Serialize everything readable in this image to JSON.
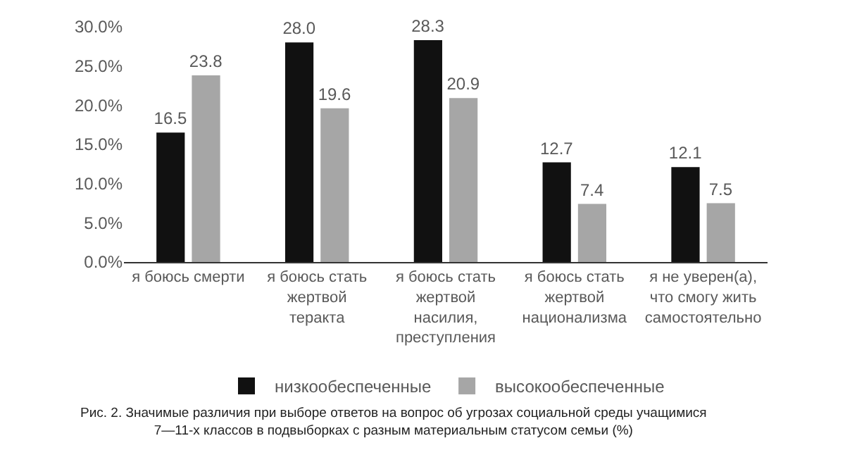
{
  "chart_data": {
    "type": "bar",
    "categories": [
      "я боюсь смерти",
      "я боюсь стать\nжертвой\nтеракта",
      "я боюсь стать\nжертвой\nнасилия,\nпреступления",
      "я боюсь стать\nжертвой\nнационализма",
      "я не уверен(а),\nчто смогу жить\nсамостоятельно"
    ],
    "series": [
      {
        "name": "низкообеспеченные",
        "color": "#111111",
        "values": [
          16.5,
          28.0,
          28.3,
          12.7,
          12.1
        ],
        "value_labels": [
          "16.5",
          "28.0",
          "28.3",
          "12.7",
          "12.1"
        ]
      },
      {
        "name": "высокообеспеченные",
        "color": "#a6a6a6",
        "values": [
          23.8,
          19.6,
          20.9,
          7.4,
          7.5
        ],
        "value_labels": [
          "23.8",
          "19.6",
          "20.9",
          "7.4",
          "7.5"
        ]
      }
    ],
    "ylim": [
      0,
      30
    ],
    "yticks": [
      {
        "value": 0,
        "label": "0.0%"
      },
      {
        "value": 5,
        "label": "5.0%"
      },
      {
        "value": 10,
        "label": "10.0%"
      },
      {
        "value": 15,
        "label": "15.0%"
      },
      {
        "value": 20,
        "label": "20.0%"
      },
      {
        "value": 25,
        "label": "25.0%"
      },
      {
        "value": 30,
        "label": "30.0%"
      }
    ],
    "legend": "bottom",
    "annotations": [
      "Рис. 2. Значимые различия при выборе ответов на вопрос об угрозах социальной среды учащимися\n7—11-х классов в подвыборках с разным материальным статусом семьи (%)"
    ]
  }
}
